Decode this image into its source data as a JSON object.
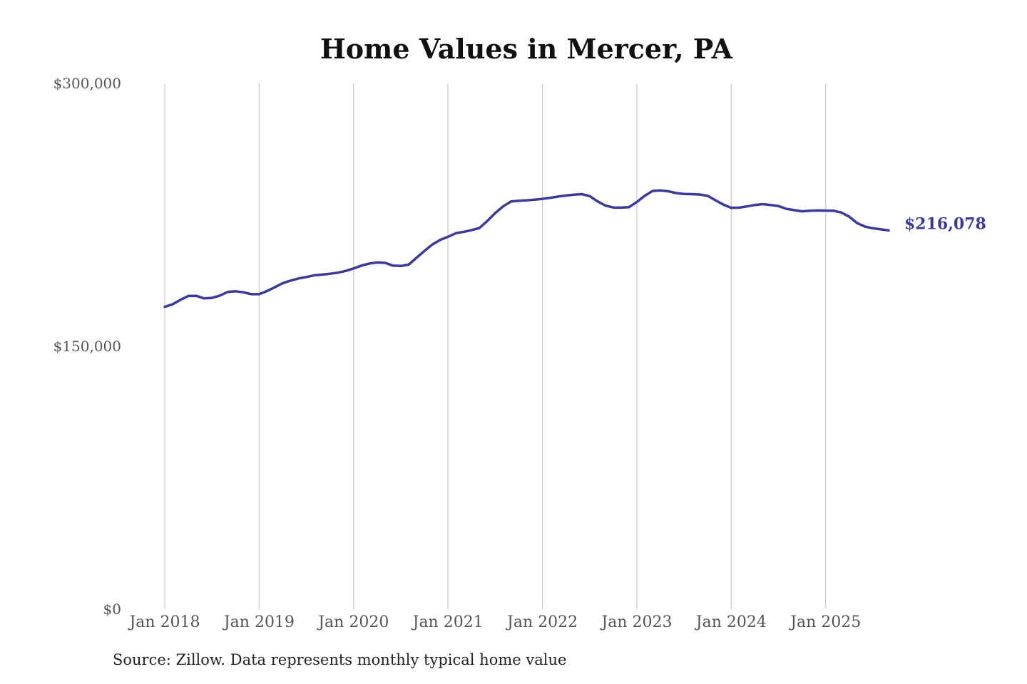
{
  "chart_data": {
    "type": "line",
    "title": "Home Values in Mercer, PA",
    "xlabel": "",
    "ylabel": "",
    "ylim": [
      0,
      300000
    ],
    "y_ticks": [
      {
        "value": 0,
        "label": "$0"
      },
      {
        "value": 150000,
        "label": "$150,000"
      },
      {
        "value": 300000,
        "label": "$300,000"
      }
    ],
    "x_ticks": [
      "Jan 2018",
      "Jan 2019",
      "Jan 2020",
      "Jan 2021",
      "Jan 2022",
      "Jan 2023",
      "Jan 2024",
      "Jan 2025"
    ],
    "xlim": [
      "2018-01",
      "2025-09"
    ],
    "vertical_grid": true,
    "horizontal_grid": false,
    "line_color": "#3a3a9a",
    "end_label": "$216,078",
    "series": [
      {
        "x": [
          "2018-01",
          "2018-02",
          "2018-03",
          "2018-04",
          "2018-05",
          "2018-06",
          "2018-07",
          "2018-08",
          "2018-09",
          "2018-10",
          "2018-11",
          "2018-12",
          "2019-01",
          "2019-02",
          "2019-03",
          "2019-04",
          "2019-05",
          "2019-06",
          "2019-07",
          "2019-08",
          "2019-09",
          "2019-10",
          "2019-11",
          "2019-12",
          "2020-01",
          "2020-02",
          "2020-03",
          "2020-04",
          "2020-05",
          "2020-06",
          "2020-07",
          "2020-08",
          "2020-09",
          "2020-10",
          "2020-11",
          "2020-12",
          "2021-01",
          "2021-02",
          "2021-03",
          "2021-04",
          "2021-05",
          "2021-06",
          "2021-07",
          "2021-08",
          "2021-09",
          "2021-10",
          "2021-11",
          "2021-12",
          "2022-01",
          "2022-02",
          "2022-03",
          "2022-04",
          "2022-05",
          "2022-06",
          "2022-07",
          "2022-08",
          "2022-09",
          "2022-10",
          "2022-11",
          "2022-12",
          "2023-01",
          "2023-02",
          "2023-03",
          "2023-04",
          "2023-05",
          "2023-06",
          "2023-07",
          "2023-08",
          "2023-09",
          "2023-10",
          "2023-11",
          "2023-12",
          "2024-01",
          "2024-02",
          "2024-03",
          "2024-04",
          "2024-05",
          "2024-06",
          "2024-07",
          "2024-08",
          "2024-09",
          "2024-10",
          "2024-11",
          "2024-12",
          "2025-01",
          "2025-02",
          "2025-03",
          "2025-04",
          "2025-05",
          "2025-06",
          "2025-07",
          "2025-08",
          "2025-09"
        ],
        "values": [
          172500,
          174000,
          176500,
          178700,
          178800,
          177300,
          177600,
          178900,
          181000,
          181400,
          180800,
          179700,
          179700,
          181500,
          183700,
          186000,
          187500,
          188700,
          189500,
          190500,
          190900,
          191400,
          192000,
          193000,
          194400,
          196000,
          197200,
          197800,
          197600,
          196000,
          195800,
          196600,
          200500,
          204400,
          208000,
          210700,
          212500,
          214500,
          215300,
          216300,
          217500,
          221500,
          226000,
          229800,
          232600,
          233000,
          233300,
          233600,
          234100,
          234700,
          235400,
          236000,
          236500,
          236800,
          235700,
          232700,
          230300,
          229200,
          229100,
          229400,
          232300,
          235900,
          238600,
          238900,
          238400,
          237400,
          236900,
          236800,
          236600,
          235800,
          233300,
          230800,
          229000,
          229100,
          229800,
          230600,
          231100,
          230600,
          230000,
          228400,
          227700,
          227000,
          227300,
          227500,
          227400,
          227300,
          226300,
          223900,
          220300,
          218300,
          217300,
          216700,
          216078
        ]
      }
    ]
  },
  "footer": {
    "source": "Source: Zillow. Data represents monthly typical home value"
  }
}
